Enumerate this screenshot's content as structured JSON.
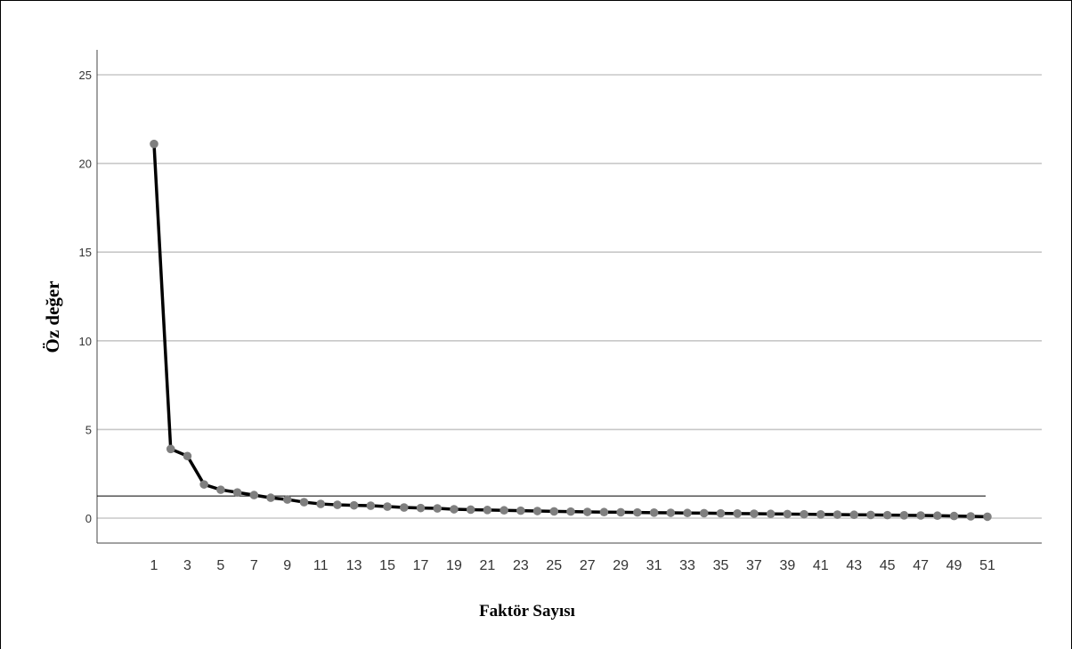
{
  "chart_data": {
    "type": "line",
    "xlabel": "Faktör Sayısı",
    "ylabel": "Öz  değer",
    "ylim": [
      0,
      25
    ],
    "xlim": [
      1,
      51
    ],
    "yticks": [
      0,
      5,
      10,
      15,
      20,
      25
    ],
    "xticks": [
      1,
      3,
      5,
      7,
      9,
      11,
      13,
      15,
      17,
      19,
      21,
      23,
      25,
      27,
      29,
      31,
      33,
      35,
      37,
      39,
      41,
      43,
      45,
      47,
      49,
      51
    ],
    "grid": true,
    "reference_line": 1.25,
    "series": [
      {
        "x": [
          1,
          2,
          3,
          4,
          5,
          6,
          7,
          8,
          9,
          10,
          11,
          12,
          13,
          14,
          15,
          16,
          17,
          18,
          19,
          20,
          21,
          22,
          23,
          24,
          25,
          26,
          27,
          28,
          29,
          30,
          31,
          32,
          33,
          34,
          35,
          36,
          37,
          38,
          39,
          40,
          41,
          42,
          43,
          44,
          45,
          46,
          47,
          48,
          49,
          50,
          51
        ],
        "values": [
          21.1,
          3.9,
          3.5,
          1.9,
          1.6,
          1.45,
          1.3,
          1.15,
          1.05,
          0.9,
          0.8,
          0.75,
          0.72,
          0.7,
          0.65,
          0.6,
          0.57,
          0.55,
          0.5,
          0.48,
          0.46,
          0.44,
          0.42,
          0.4,
          0.38,
          0.37,
          0.35,
          0.34,
          0.33,
          0.32,
          0.31,
          0.3,
          0.29,
          0.28,
          0.27,
          0.26,
          0.25,
          0.24,
          0.23,
          0.22,
          0.21,
          0.2,
          0.19,
          0.18,
          0.17,
          0.16,
          0.15,
          0.14,
          0.12,
          0.1,
          0.08
        ]
      }
    ],
    "colors": {
      "line": "#000000",
      "marker": "#7f7f7f",
      "grid": "#c8c8c8",
      "reference": "#000000"
    }
  }
}
